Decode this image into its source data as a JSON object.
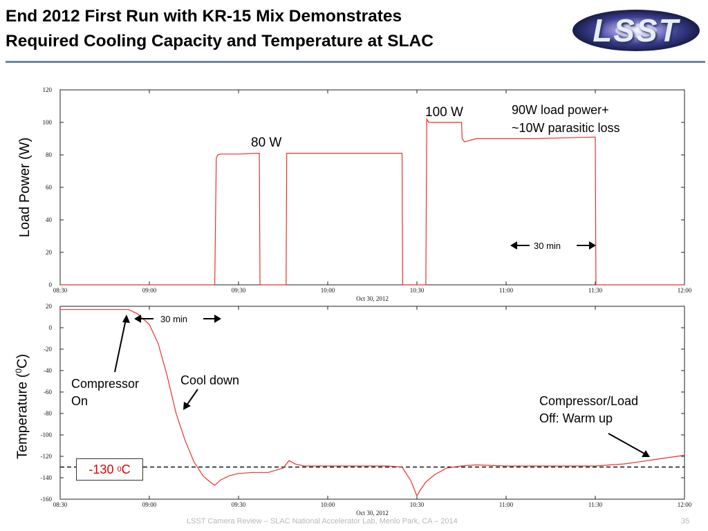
{
  "slide": {
    "title_line1": "End 2012 First Run with KR-15 Mix Demonstrates",
    "title_line2": "Required Cooling Capacity and Temperature at SLAC",
    "logo_text": "LSST",
    "footer": "LSST Camera Review – SLAC National Accelerator Lab, Menlo Park, CA – 2014",
    "page_number": "35"
  },
  "annotations": {
    "w80": "80 W",
    "w100": "100 W",
    "load_note_line1": "90W load power+",
    "load_note_line2": "~10W parasitic loss",
    "top_interval": "30 min",
    "bottom_interval": "30 min",
    "compressor_on_line1": "Compressor",
    "compressor_on_line2": "On",
    "cool_down": "Cool down",
    "warm_up_line1": "Compressor/Load",
    "warm_up_line2": "Off: Warm up",
    "ref_value": "-130 ",
    "ref_sup": "0",
    "ref_unit": "C"
  },
  "chart_data": [
    {
      "type": "line",
      "ylabel": "Load Power (W)",
      "xlabel": "Oct 30, 2012",
      "x_ticks": [
        "08:30",
        "09:00",
        "09:30",
        "10:00",
        "10:30",
        "11:00",
        "11:30",
        "12:00"
      ],
      "y_ticks": [
        0,
        20,
        40,
        60,
        80,
        100,
        120
      ],
      "xlim": [
        "08:30",
        "12:00"
      ],
      "ylim": [
        0,
        120
      ],
      "grid": false,
      "color": "#e8312a",
      "series": [
        {
          "x": [
            "08:30",
            "09:22",
            "09:22.5",
            "09:23",
            "09:24",
            "09:30",
            "09:37",
            "09:37.2",
            "09:46",
            "09:46.2",
            "09:50",
            "10:00",
            "10:10",
            "10:25",
            "10:25.2",
            "10:33",
            "10:33.3",
            "10:34",
            "10:40",
            "10:45",
            "10:45.2",
            "10:46",
            "10:50",
            "11:00",
            "11:10",
            "11:20",
            "11:30",
            "11:30.2",
            "12:00"
          ],
          "y": [
            0,
            0,
            78,
            80,
            80.5,
            80.5,
            81,
            0,
            0,
            81,
            81,
            81,
            81,
            81,
            0,
            0,
            102,
            100,
            100,
            100,
            90,
            88,
            90,
            90,
            90,
            90.5,
            91,
            0,
            0
          ]
        }
      ]
    },
    {
      "type": "line",
      "ylabel_prefix": "Temperature (",
      "ylabel_sup": "0",
      "ylabel_suffix": "C)",
      "xlabel": "Oct 30, 2012",
      "x_ticks": [
        "08:30",
        "09:00",
        "09:30",
        "10:00",
        "10:30",
        "11:00",
        "11:30",
        "12:00"
      ],
      "y_ticks": [
        20,
        0,
        -20,
        -40,
        -60,
        -80,
        -100,
        -120,
        -140,
        -160
      ],
      "xlim": [
        "08:30",
        "12:00"
      ],
      "ylim": [
        -160,
        20
      ],
      "grid": false,
      "color": "#e8312a",
      "reference_line": -130,
      "series": [
        {
          "x": [
            "08:30",
            "08:40",
            "08:50",
            "08:53",
            "08:56",
            "09:00",
            "09:03",
            "09:06",
            "09:09",
            "09:12",
            "09:15",
            "09:18",
            "09:20",
            "09:22",
            "09:24",
            "09:27",
            "09:30",
            "09:35",
            "09:40",
            "09:45",
            "09:47",
            "09:49",
            "09:52",
            "09:55",
            "10:00",
            "10:10",
            "10:20",
            "10:25",
            "10:28",
            "10:30",
            "10:31",
            "10:33",
            "10:36",
            "10:40",
            "10:45",
            "10:50",
            "11:00",
            "11:10",
            "11:20",
            "11:30",
            "11:35",
            "11:40",
            "11:45",
            "11:50",
            "11:55",
            "12:00"
          ],
          "y": [
            17,
            17,
            17,
            17,
            13,
            3,
            -15,
            -45,
            -80,
            -105,
            -125,
            -138,
            -143,
            -147,
            -142,
            -138,
            -136,
            -135,
            -135,
            -131,
            -124,
            -127,
            -129,
            -129,
            -129,
            -129,
            -129,
            -130,
            -143,
            -157,
            -152,
            -144,
            -137,
            -131,
            -129,
            -128,
            -129,
            -129,
            -129,
            -129,
            -128,
            -127,
            -125,
            -123,
            -121,
            -119
          ]
        }
      ]
    }
  ]
}
